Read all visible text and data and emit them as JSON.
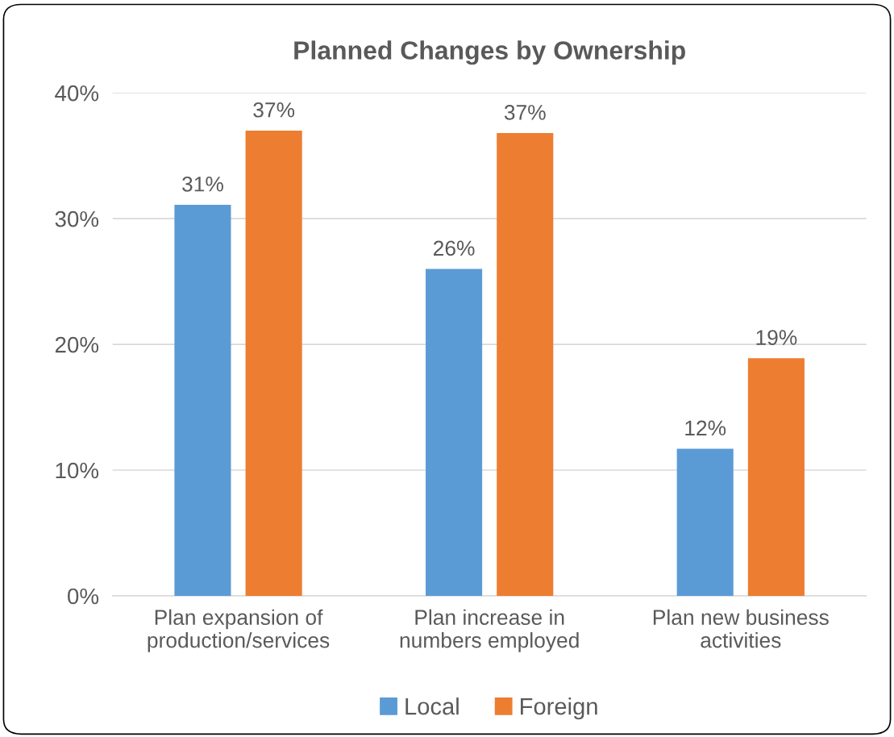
{
  "chart_data": {
    "type": "bar",
    "title": "Planned Changes by Ownership",
    "categories": [
      "Plan expansion of\nproduction/services",
      "Plan increase in\nnumbers employed",
      "Plan new business\nactivities"
    ],
    "series": [
      {
        "name": "Local",
        "color": "#5b9bd5",
        "values": [
          31.1,
          26.0,
          11.7
        ],
        "value_labels": [
          "31%",
          "26%",
          "12%"
        ]
      },
      {
        "name": "Foreign",
        "color": "#ed7d31",
        "values": [
          37.0,
          36.8,
          18.9
        ],
        "value_labels": [
          "37%",
          "37%",
          "19%"
        ]
      }
    ],
    "ylim": [
      0,
      40
    ],
    "yticks": [
      {
        "value": 0,
        "label": "0%"
      },
      {
        "value": 10,
        "label": "10%"
      },
      {
        "value": 20,
        "label": "20%"
      },
      {
        "value": 30,
        "label": "30%"
      },
      {
        "value": 40,
        "label": "40%"
      }
    ],
    "grid": "y",
    "legend": "bottom"
  }
}
